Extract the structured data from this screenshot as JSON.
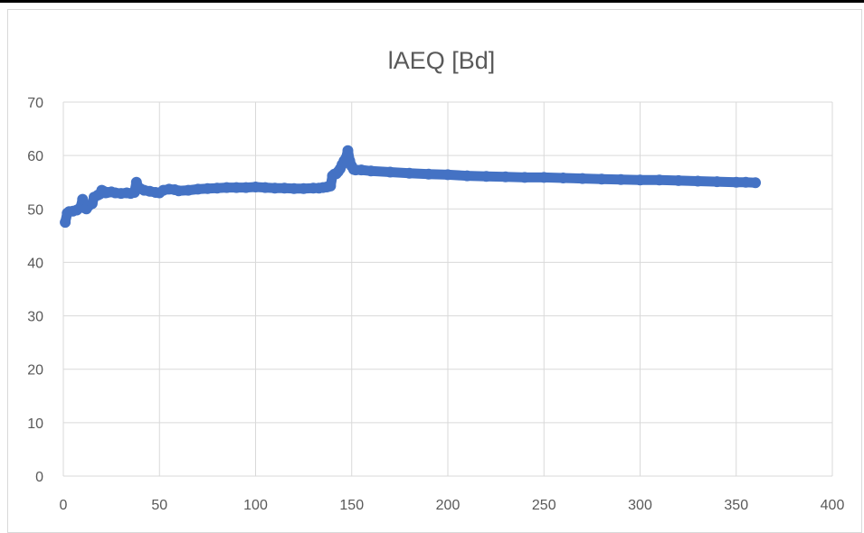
{
  "chart_data": {
    "type": "scatter",
    "title": "lAEQ [Bd]",
    "xlabel": "",
    "ylabel": "",
    "xlim": [
      0,
      400
    ],
    "ylim": [
      0,
      70
    ],
    "x_ticks": [
      "0",
      "50",
      "100",
      "150",
      "200",
      "250",
      "300",
      "350",
      "400"
    ],
    "y_ticks": [
      "0",
      "10",
      "20",
      "30",
      "40",
      "50",
      "60",
      "70"
    ],
    "grid": true,
    "legend": "none",
    "series_color": "#4472c4",
    "series": [
      {
        "x": [
          1,
          2,
          3,
          5,
          7,
          9,
          10,
          11,
          12,
          13,
          15,
          16,
          18,
          19,
          20,
          21,
          22,
          23,
          25,
          27,
          30,
          33,
          35,
          37,
          38,
          39,
          40,
          42,
          45,
          48,
          50,
          52,
          55,
          58,
          60,
          65,
          70,
          75,
          80,
          85,
          90,
          95,
          100,
          105,
          110,
          115,
          120,
          125,
          130,
          133,
          135,
          137,
          138,
          139,
          140,
          141,
          142,
          143,
          144,
          145,
          146,
          147,
          148,
          149,
          150,
          151,
          152,
          155,
          160,
          170,
          180,
          190,
          200,
          210,
          220,
          230,
          240,
          250,
          260,
          270,
          280,
          290,
          300,
          310,
          320,
          330,
          340,
          350,
          355,
          360
        ],
        "y": [
          47.5,
          49.2,
          49.5,
          49.6,
          49.8,
          50.3,
          51.8,
          50.2,
          50.0,
          50.5,
          51.0,
          52.2,
          52.6,
          52.8,
          53.5,
          53.3,
          53.0,
          53.1,
          53.2,
          53.0,
          52.9,
          53.0,
          52.9,
          53.1,
          55.0,
          54.0,
          53.8,
          53.5,
          53.3,
          53.1,
          53.0,
          53.5,
          53.7,
          53.6,
          53.4,
          53.5,
          53.7,
          53.8,
          53.9,
          54.0,
          54.0,
          54.0,
          54.1,
          54.0,
          53.9,
          53.9,
          53.8,
          53.8,
          53.9,
          53.9,
          54.0,
          54.1,
          54.2,
          54.3,
          56.2,
          56.5,
          56.6,
          57.0,
          57.5,
          58.3,
          59.0,
          59.5,
          60.9,
          59.0,
          58.0,
          57.4,
          57.3,
          57.3,
          57.1,
          56.9,
          56.7,
          56.5,
          56.4,
          56.2,
          56.1,
          56.0,
          55.9,
          55.9,
          55.8,
          55.7,
          55.6,
          55.5,
          55.4,
          55.4,
          55.3,
          55.2,
          55.1,
          55.0,
          55.0,
          54.9
        ]
      }
    ]
  }
}
